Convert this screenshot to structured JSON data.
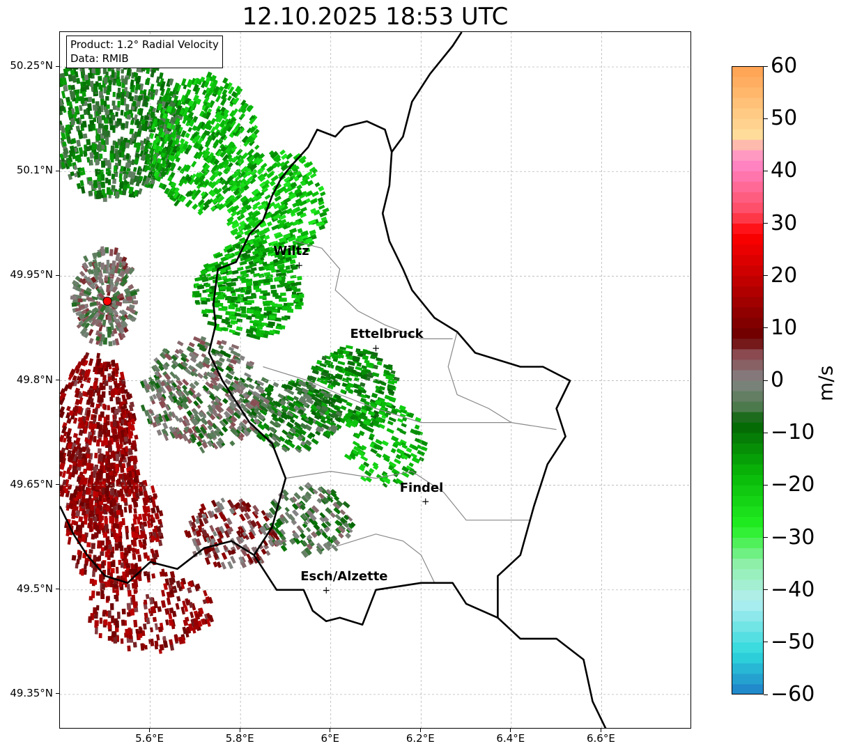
{
  "title": "12.10.2025 18:53 UTC",
  "info": {
    "product": "Product: 1.2° Radial Velocity",
    "source": "Data: RMIB"
  },
  "axes": {
    "lat_ticks": [
      {
        "value": 50.25,
        "label": "50.25°N"
      },
      {
        "value": 50.1,
        "label": "50.1°N"
      },
      {
        "value": 49.95,
        "label": "49.95°N"
      },
      {
        "value": 49.8,
        "label": "49.8°N"
      },
      {
        "value": 49.65,
        "label": "49.65°N"
      },
      {
        "value": 49.5,
        "label": "49.5°N"
      },
      {
        "value": 49.35,
        "label": "49.35°N"
      }
    ],
    "lon_ticks": [
      {
        "value": 5.6,
        "label": "5.6°E"
      },
      {
        "value": 5.8,
        "label": "5.8°E"
      },
      {
        "value": 6.0,
        "label": "6°E"
      },
      {
        "value": 6.2,
        "label": "6.2°E"
      },
      {
        "value": 6.4,
        "label": "6.4°E"
      },
      {
        "value": 6.6,
        "label": "6.6°E"
      }
    ],
    "lon_range": [
      5.4,
      6.8
    ],
    "lat_range": [
      49.3,
      50.3
    ],
    "gridlines": true
  },
  "colorbar": {
    "unit": "m/s",
    "min": -60,
    "max": 60,
    "ticks": [
      {
        "value": 60,
        "label": "60"
      },
      {
        "value": 50,
        "label": "50"
      },
      {
        "value": 40,
        "label": "40"
      },
      {
        "value": 30,
        "label": "30"
      },
      {
        "value": 20,
        "label": "20"
      },
      {
        "value": 10,
        "label": "10"
      },
      {
        "value": 0,
        "label": "0"
      },
      {
        "value": -10,
        "label": "−10"
      },
      {
        "value": -20,
        "label": "−20"
      },
      {
        "value": -30,
        "label": "−30"
      },
      {
        "value": -40,
        "label": "−40"
      },
      {
        "value": -50,
        "label": "−50"
      },
      {
        "value": -60,
        "label": "−60"
      }
    ],
    "stops": [
      {
        "v": -60,
        "color": "#1f7fc8"
      },
      {
        "v": -52,
        "color": "#2ed9dc"
      },
      {
        "v": -42,
        "color": "#b4eef0"
      },
      {
        "v": -35,
        "color": "#8ef0a8"
      },
      {
        "v": -28,
        "color": "#22f022"
      },
      {
        "v": -18,
        "color": "#08b808"
      },
      {
        "v": -8,
        "color": "#056405"
      },
      {
        "v": -5,
        "color": "#4d7a4d"
      },
      {
        "v": 0,
        "color": "#848484"
      },
      {
        "v": 5,
        "color": "#8a4a50"
      },
      {
        "v": 8,
        "color": "#6a0000"
      },
      {
        "v": 20,
        "color": "#c80000"
      },
      {
        "v": 28,
        "color": "#ff0000"
      },
      {
        "v": 32,
        "color": "#ff4a60"
      },
      {
        "v": 42,
        "color": "#ff88cc"
      },
      {
        "v": 47,
        "color": "#ffdc9a"
      },
      {
        "v": 60,
        "color": "#ffa050"
      }
    ]
  },
  "radar_site": {
    "lon": 5.505,
    "lat": 49.914,
    "color": "#ff0000"
  },
  "cities": [
    {
      "name": "Wiltz",
      "lon": 5.93,
      "lat": 49.966
    },
    {
      "name": "Ettelbruck",
      "lon": 6.1,
      "lat": 49.847
    },
    {
      "name": "Findel",
      "lon": 6.21,
      "lat": 49.627
    },
    {
      "name": "Esch/Alzette",
      "lon": 5.99,
      "lat": 49.5
    }
  ],
  "border_outline": [
    [
      6.135,
      50.128
    ],
    [
      6.12,
      50.16
    ],
    [
      6.08,
      50.172
    ],
    [
      6.03,
      50.164
    ],
    [
      6.01,
      50.15
    ],
    [
      5.97,
      50.16
    ],
    [
      5.95,
      50.135
    ],
    [
      5.915,
      50.11
    ],
    [
      5.89,
      50.09
    ],
    [
      5.87,
      50.065
    ],
    [
      5.85,
      50.03
    ],
    [
      5.82,
      50.01
    ],
    [
      5.79,
      49.97
    ],
    [
      5.75,
      49.96
    ],
    [
      5.74,
      49.91
    ],
    [
      5.745,
      49.88
    ],
    [
      5.73,
      49.84
    ],
    [
      5.76,
      49.8
    ],
    [
      5.82,
      49.74
    ],
    [
      5.87,
      49.71
    ],
    [
      5.9,
      49.66
    ],
    [
      5.87,
      49.59
    ],
    [
      5.83,
      49.55
    ],
    [
      5.88,
      49.5
    ],
    [
      5.94,
      49.5
    ],
    [
      5.96,
      49.47
    ],
    [
      5.99,
      49.455
    ],
    [
      6.02,
      49.46
    ],
    [
      6.07,
      49.45
    ],
    [
      6.1,
      49.5
    ],
    [
      6.2,
      49.51
    ],
    [
      6.27,
      49.51
    ],
    [
      6.3,
      49.48
    ],
    [
      6.37,
      49.46
    ],
    [
      6.37,
      49.52
    ],
    [
      6.42,
      49.55
    ],
    [
      6.45,
      49.62
    ],
    [
      6.48,
      49.68
    ],
    [
      6.52,
      49.72
    ],
    [
      6.5,
      49.76
    ],
    [
      6.53,
      49.8
    ],
    [
      6.47,
      49.82
    ],
    [
      6.42,
      49.82
    ],
    [
      6.32,
      49.84
    ],
    [
      6.28,
      49.87
    ],
    [
      6.23,
      49.89
    ],
    [
      6.18,
      49.93
    ],
    [
      6.16,
      49.96
    ],
    [
      6.13,
      50.0
    ],
    [
      6.115,
      50.04
    ],
    [
      6.13,
      50.08
    ],
    [
      6.135,
      50.128
    ]
  ],
  "border_east": [
    [
      6.135,
      50.128
    ],
    [
      6.16,
      50.15
    ],
    [
      6.18,
      50.2
    ],
    [
      6.22,
      50.24
    ],
    [
      6.27,
      50.28
    ],
    [
      6.29,
      50.3
    ]
  ],
  "border_southeast": [
    [
      6.37,
      49.46
    ],
    [
      6.42,
      49.43
    ],
    [
      6.5,
      49.43
    ],
    [
      6.56,
      49.4
    ],
    [
      6.58,
      49.34
    ],
    [
      6.61,
      49.3
    ]
  ],
  "border_france": [
    [
      5.4,
      49.62
    ],
    [
      5.43,
      49.58
    ],
    [
      5.46,
      49.55
    ],
    [
      5.5,
      49.52
    ],
    [
      5.55,
      49.51
    ],
    [
      5.6,
      49.54
    ],
    [
      5.66,
      49.53
    ],
    [
      5.72,
      49.56
    ],
    [
      5.78,
      49.57
    ],
    [
      5.83,
      49.55
    ]
  ],
  "canton_lines": [
    [
      [
        5.92,
        50.0
      ],
      [
        5.98,
        49.99
      ],
      [
        6.02,
        49.96
      ],
      [
        6.01,
        49.93
      ],
      [
        6.06,
        49.9
      ],
      [
        6.12,
        49.88
      ],
      [
        6.2,
        49.86
      ],
      [
        6.27,
        49.86
      ]
    ],
    [
      [
        5.85,
        49.82
      ],
      [
        5.95,
        49.8
      ],
      [
        6.02,
        49.78
      ],
      [
        6.1,
        49.76
      ],
      [
        6.2,
        49.74
      ],
      [
        6.3,
        49.74
      ],
      [
        6.4,
        49.74
      ],
      [
        6.5,
        49.73
      ]
    ],
    [
      [
        5.9,
        49.66
      ],
      [
        6.0,
        49.67
      ],
      [
        6.1,
        49.66
      ],
      [
        6.18,
        49.67
      ],
      [
        6.25,
        49.64
      ],
      [
        6.3,
        49.6
      ],
      [
        6.35,
        49.6
      ],
      [
        6.44,
        49.6
      ]
    ],
    [
      [
        6.0,
        49.56
      ],
      [
        6.1,
        49.58
      ],
      [
        6.16,
        49.57
      ],
      [
        6.2,
        49.55
      ],
      [
        6.23,
        49.51
      ]
    ],
    [
      [
        6.28,
        49.87
      ],
      [
        6.26,
        49.82
      ],
      [
        6.28,
        49.78
      ],
      [
        6.35,
        49.76
      ],
      [
        6.4,
        49.74
      ]
    ]
  ],
  "echo_regions": [
    {
      "lon": 5.52,
      "lat": 50.17,
      "rx": 0.15,
      "ry": 0.11,
      "v": -9,
      "density": 0.7
    },
    {
      "lon": 5.72,
      "lat": 50.14,
      "rx": 0.12,
      "ry": 0.1,
      "v": -18,
      "density": 0.55
    },
    {
      "lon": 5.88,
      "lat": 50.05,
      "rx": 0.11,
      "ry": 0.08,
      "v": -20,
      "density": 0.5
    },
    {
      "lon": 5.82,
      "lat": 49.93,
      "rx": 0.12,
      "ry": 0.07,
      "v": -16,
      "density": 0.6
    },
    {
      "lon": 6.05,
      "lat": 49.79,
      "rx": 0.1,
      "ry": 0.06,
      "v": -13,
      "density": 0.55
    },
    {
      "lon": 5.92,
      "lat": 49.75,
      "rx": 0.1,
      "ry": 0.05,
      "v": -8,
      "density": 0.65
    },
    {
      "lon": 6.12,
      "lat": 49.71,
      "rx": 0.09,
      "ry": 0.06,
      "v": -18,
      "density": 0.35
    },
    {
      "lon": 5.72,
      "lat": 49.78,
      "rx": 0.14,
      "ry": 0.08,
      "v": -2,
      "density": 0.5
    },
    {
      "lon": 5.48,
      "lat": 49.71,
      "rx": 0.09,
      "ry": 0.13,
      "v": 12,
      "density": 0.7
    },
    {
      "lon": 5.52,
      "lat": 49.59,
      "rx": 0.11,
      "ry": 0.09,
      "v": 13,
      "density": 0.55
    },
    {
      "lon": 5.6,
      "lat": 49.47,
      "rx": 0.14,
      "ry": 0.06,
      "v": 12,
      "density": 0.35
    },
    {
      "lon": 5.78,
      "lat": 49.58,
      "rx": 0.1,
      "ry": 0.05,
      "v": 6,
      "density": 0.45
    },
    {
      "lon": 5.95,
      "lat": 49.6,
      "rx": 0.1,
      "ry": 0.05,
      "v": -4,
      "density": 0.4
    },
    {
      "lon": 5.5,
      "lat": 49.92,
      "rx": 0.07,
      "ry": 0.07,
      "v": 0,
      "density": 0.8
    }
  ]
}
